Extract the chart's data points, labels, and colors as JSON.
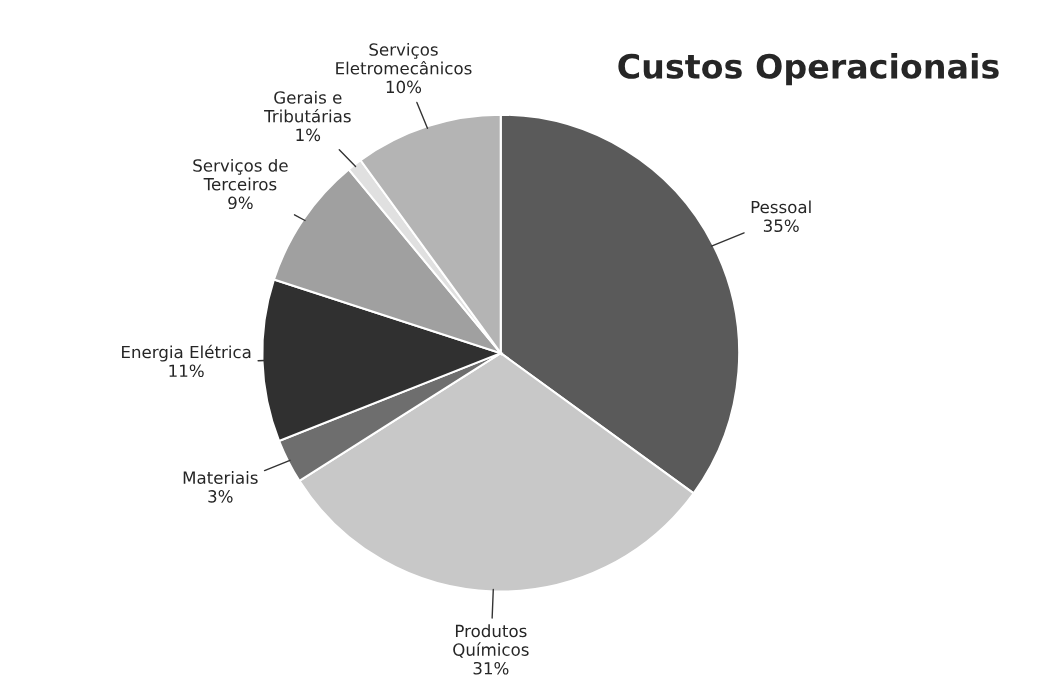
{
  "chart_data": {
    "type": "pie",
    "title": "Custos Operacionais",
    "categories": [
      "Pessoal",
      "Produtos\nQuímicos",
      "Materiais",
      "Energia Elétrica",
      "Serviços de\nTerceiros",
      "Gerais e\nTributárias",
      "Serviços\nEletromecânicos"
    ],
    "values": [
      35,
      31,
      3,
      11,
      9,
      1,
      10
    ],
    "value_labels": [
      "35%",
      "31%",
      "3%",
      "11%",
      "9%",
      "1%",
      "10%"
    ],
    "colors": [
      "#5a5a5a",
      "#c8c8c8",
      "#6e6e6e",
      "#303030",
      "#a0a0a0",
      "#e0e0e0",
      "#b4b4b4"
    ]
  }
}
